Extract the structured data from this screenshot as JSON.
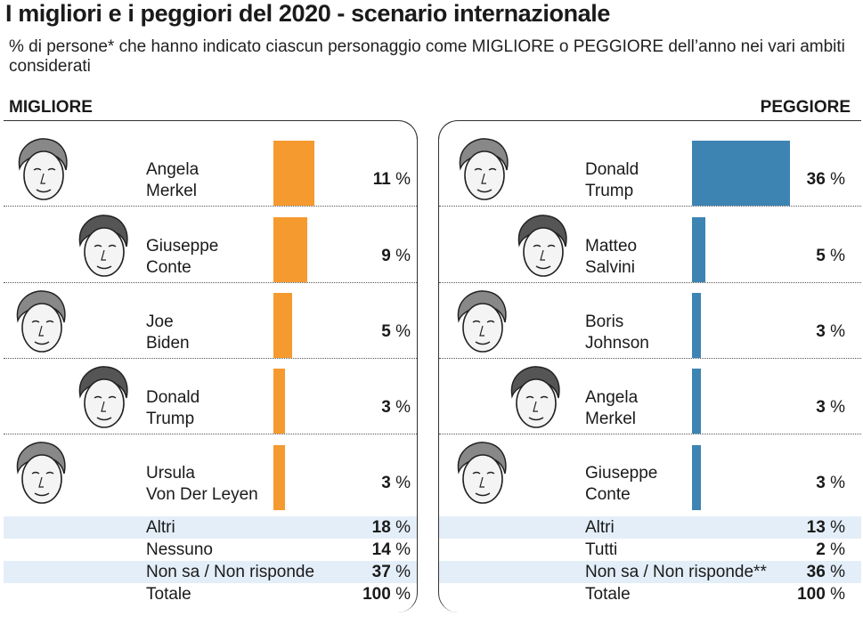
{
  "title": "I migliori e i peggiori del 2020 - scenario internazionale",
  "subtitle": "% di persone* che hanno indicato ciascun personaggio come MIGLIORE o PEGGIORE dell’anno nei vari ambiti considerati",
  "colors": {
    "best": "#f59a2f",
    "worst": "#3d84b3",
    "shade": "#e3eef8"
  },
  "best": {
    "label": "MIGLIORE",
    "people": [
      {
        "line1": "Angela",
        "line2": "Merkel",
        "value": "11",
        "unit": "%"
      },
      {
        "line1": "Giuseppe",
        "line2": "Conte",
        "value": "9",
        "unit": "%"
      },
      {
        "line1": "Joe",
        "line2": "Biden",
        "value": "5",
        "unit": "%"
      },
      {
        "line1": "Donald",
        "line2": "Trump",
        "value": "3",
        "unit": "%"
      },
      {
        "line1": "Ursula",
        "line2": "Von Der Leyen",
        "value": "3",
        "unit": "%"
      }
    ],
    "footer": [
      {
        "label": "Altri",
        "value": "18",
        "unit": "%"
      },
      {
        "label": "Nessuno",
        "value": "14",
        "unit": "%"
      },
      {
        "label": "Non sa / Non risponde",
        "value": "37",
        "unit": "%"
      },
      {
        "label": "Totale",
        "value": "100",
        "unit": "%"
      }
    ]
  },
  "worst": {
    "label": "PEGGIORE",
    "people": [
      {
        "line1": "Donald",
        "line2": "Trump",
        "value": "36",
        "unit": "%"
      },
      {
        "line1": "Matteo",
        "line2": "Salvini",
        "value": "5",
        "unit": "%"
      },
      {
        "line1": "Boris",
        "line2": "Johnson",
        "value": "3",
        "unit": "%"
      },
      {
        "line1": "Angela",
        "line2": "Merkel",
        "value": "3",
        "unit": "%"
      },
      {
        "line1": "Giuseppe",
        "line2": "Conte",
        "value": "3",
        "unit": "%"
      }
    ],
    "footer": [
      {
        "label": "Altri",
        "value": "13",
        "unit": "%"
      },
      {
        "label": "Tutti",
        "value": "2",
        "unit": "%"
      },
      {
        "label": "Non sa / Non risponde**",
        "value": "36",
        "unit": "%"
      },
      {
        "label": "Totale",
        "value": "100",
        "unit": "%"
      }
    ]
  },
  "chart_data": [
    {
      "type": "bar",
      "categories": [
        "Angela Merkel",
        "Giuseppe Conte",
        "Joe Biden",
        "Donald Trump",
        "Ursula Von Der Leyen"
      ],
      "values": [
        11,
        9,
        5,
        3,
        3
      ]
    },
    {
      "type": "bar",
      "categories": [
        "Donald Trump",
        "Matteo Salvini",
        "Boris Johnson",
        "Angela Merkel",
        "Giuseppe Conte"
      ],
      "values": [
        36,
        5,
        3,
        3,
        3
      ]
    }
  ]
}
